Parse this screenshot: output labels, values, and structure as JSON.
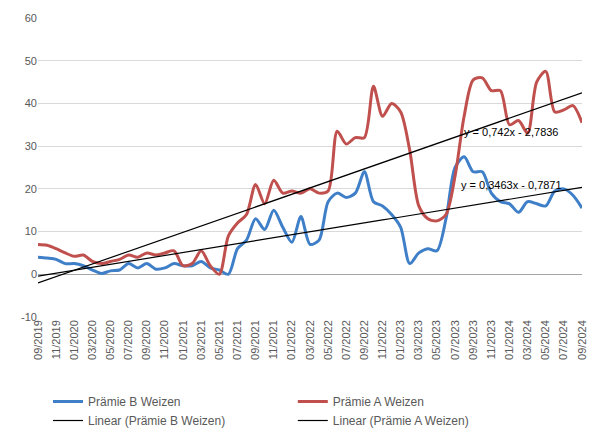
{
  "chart_data": {
    "type": "line",
    "categories": [
      "09/2019",
      null,
      "11/2019",
      null,
      "01/2020",
      null,
      "03/2020",
      null,
      "05/2020",
      null,
      "07/2020",
      null,
      "09/2020",
      null,
      "11/2020",
      null,
      "01/2021",
      null,
      "03/2021",
      null,
      "05/2021",
      null,
      "07/2021",
      null,
      "09/2021",
      null,
      "11/2021",
      null,
      "01/2022",
      null,
      "03/2022",
      null,
      "05/2022",
      null,
      "07/2022",
      null,
      "09/2022",
      null,
      "11/2022",
      null,
      "01/2023",
      null,
      "03/2023",
      null,
      "05/2023",
      null,
      "07/2023",
      null,
      "09/2023",
      null,
      "11/2023",
      null,
      "01/2024",
      null,
      "03/2024",
      null,
      "05/2024",
      null,
      "07/2024",
      null,
      "09/2024"
    ],
    "series": [
      {
        "name": "Prämie B Weizen",
        "color": "#3f7fc8",
        "line_style": "smooth",
        "values": [
          4,
          3.8,
          3.5,
          2.5,
          2.5,
          2,
          1,
          0.2,
          0.8,
          1,
          2.5,
          1.5,
          2.5,
          1.2,
          1.5,
          2.5,
          2,
          2,
          3,
          1.5,
          1,
          0,
          6,
          8,
          13,
          10.5,
          15,
          11,
          7.5,
          13.5,
          7,
          8,
          17,
          19,
          18,
          19,
          24,
          17,
          16,
          14,
          11,
          2.5,
          5,
          6,
          5.5,
          13,
          25,
          27.5,
          24,
          24,
          19,
          17,
          16.5,
          14.5,
          17,
          16.5,
          16,
          19.5,
          20,
          18.5,
          15.5
        ]
      },
      {
        "name": "Prämie A Weizen",
        "color": "#c0504d",
        "line_style": "smooth",
        "values": [
          7,
          6.8,
          6,
          5,
          4.2,
          4.5,
          3,
          2.5,
          3,
          3.5,
          4.5,
          4,
          5,
          4.5,
          5,
          5.5,
          2,
          2.5,
          5.5,
          2,
          0,
          9,
          12,
          14,
          21,
          16.5,
          22,
          19,
          19.5,
          19,
          20,
          19,
          19.5,
          33.5,
          30.5,
          32,
          32,
          44,
          37,
          40,
          38,
          29,
          16,
          13,
          12.5,
          14,
          23,
          37,
          45.5,
          46,
          43,
          43,
          35,
          36,
          33,
          45,
          47.5,
          38,
          38.5,
          39.5,
          35.5
        ]
      },
      {
        "name": "Linear (Prämie B Weizen)",
        "color": "#000000",
        "line_style": "solid",
        "values": [
          -0.44,
          -0.09,
          0.25,
          0.6,
          0.94,
          1.29,
          1.64,
          1.98,
          2.33,
          2.68,
          3.02,
          3.37,
          3.71,
          4.06,
          4.41,
          4.75,
          5.1,
          5.45,
          5.79,
          6.14,
          6.49,
          6.83,
          7.18,
          7.52,
          7.87,
          8.22,
          8.56,
          8.91,
          9.26,
          9.6,
          9.95,
          10.29,
          10.64,
          10.99,
          11.33,
          11.68,
          12.03,
          12.37,
          12.72,
          13.06,
          13.41,
          13.76,
          14.1,
          14.45,
          14.8,
          15.14,
          15.49,
          15.84,
          16.18,
          16.53,
          16.87,
          17.22,
          17.57,
          17.91,
          18.26,
          18.61,
          18.95,
          19.3,
          19.64,
          19.99,
          20.34
        ]
      },
      {
        "name": "Linear (Prämie A Weizen)",
        "color": "#000000",
        "line_style": "solid",
        "values": [
          -2.04,
          -1.3,
          -0.56,
          0.18,
          0.93,
          1.67,
          2.41,
          3.15,
          3.89,
          4.64,
          5.38,
          6.12,
          6.86,
          7.6,
          8.35,
          9.09,
          9.83,
          10.57,
          11.31,
          12.06,
          12.8,
          13.54,
          14.28,
          15.02,
          15.77,
          16.51,
          17.25,
          17.99,
          18.73,
          19.48,
          20.22,
          20.96,
          21.7,
          22.44,
          23.19,
          23.93,
          24.67,
          25.41,
          26.15,
          26.9,
          27.64,
          28.38,
          29.12,
          29.86,
          30.61,
          31.35,
          32.09,
          32.83,
          33.57,
          34.32,
          35.06,
          35.8,
          36.54,
          37.28,
          38.03,
          38.77,
          39.51,
          40.25,
          40.99,
          41.74,
          42.48
        ]
      }
    ],
    "annotations": [
      "y = 0,742x - 2,7836",
      "y = 0,3463x - 0,7871"
    ],
    "ylim": [
      -10,
      60
    ],
    "yticks": [
      -10,
      0,
      10,
      20,
      30,
      40,
      50,
      60
    ],
    "grid": true,
    "legend": "bottom"
  }
}
